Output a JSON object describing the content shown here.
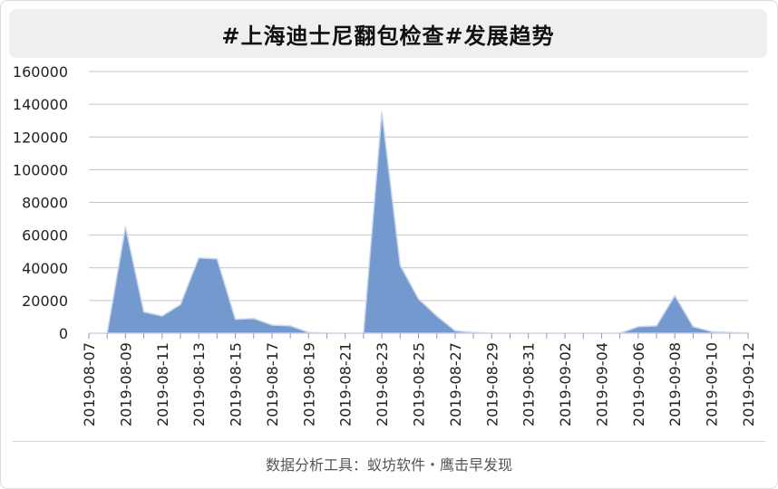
{
  "title": "#上海迪士尼翻包检查#发展趋势",
  "footer": "数据分析工具：蚁坊软件・鹰击早发现",
  "colors": {
    "area_fill": "#7399cf",
    "area_stroke": "#c8d6ea",
    "grid": "#c4c4c4",
    "axis": "#999999",
    "tick_text": "#222222"
  },
  "chart_data": {
    "type": "area",
    "title": "#上海迪士尼翻包检查#发展趋势",
    "xlabel": "",
    "ylabel": "",
    "ylim": [
      0,
      160000
    ],
    "yticks": [
      0,
      20000,
      40000,
      60000,
      80000,
      100000,
      120000,
      140000,
      160000
    ],
    "ytick_labels": [
      "0",
      "20000",
      "40000",
      "60000",
      "80000",
      "100000",
      "120000",
      "140000",
      "160000"
    ],
    "grid": true,
    "legend": "none",
    "xtick_labels": [
      "2019-08-07",
      "2019-08-09",
      "2019-08-11",
      "2019-08-13",
      "2019-08-15",
      "2019-08-17",
      "2019-08-19",
      "2019-08-21",
      "2019-08-23",
      "2019-08-25",
      "2019-08-27",
      "2019-08-29",
      "2019-08-31",
      "2019-09-02",
      "2019-09-04",
      "2019-09-06",
      "2019-09-08",
      "2019-09-10",
      "2019-09-12"
    ],
    "x": [
      "2019-08-07",
      "2019-08-08",
      "2019-08-09",
      "2019-08-10",
      "2019-08-11",
      "2019-08-12",
      "2019-08-13",
      "2019-08-14",
      "2019-08-15",
      "2019-08-16",
      "2019-08-17",
      "2019-08-18",
      "2019-08-19",
      "2019-08-20",
      "2019-08-21",
      "2019-08-22",
      "2019-08-23",
      "2019-08-24",
      "2019-08-25",
      "2019-08-26",
      "2019-08-27",
      "2019-08-28",
      "2019-08-29",
      "2019-08-30",
      "2019-08-31",
      "2019-09-01",
      "2019-09-02",
      "2019-09-03",
      "2019-09-04",
      "2019-09-05",
      "2019-09-06",
      "2019-09-07",
      "2019-09-08",
      "2019-09-09",
      "2019-09-10",
      "2019-09-11",
      "2019-09-12"
    ],
    "series": [
      {
        "values": [
          0,
          0,
          65000,
          13000,
          10500,
          17500,
          46000,
          45500,
          8500,
          9000,
          5000,
          4500,
          500,
          0,
          0,
          0,
          135000,
          41500,
          21000,
          10500,
          1500,
          500,
          0,
          0,
          0,
          0,
          0,
          0,
          0,
          0,
          4000,
          4500,
          23000,
          4000,
          1000,
          500,
          0
        ]
      }
    ]
  }
}
